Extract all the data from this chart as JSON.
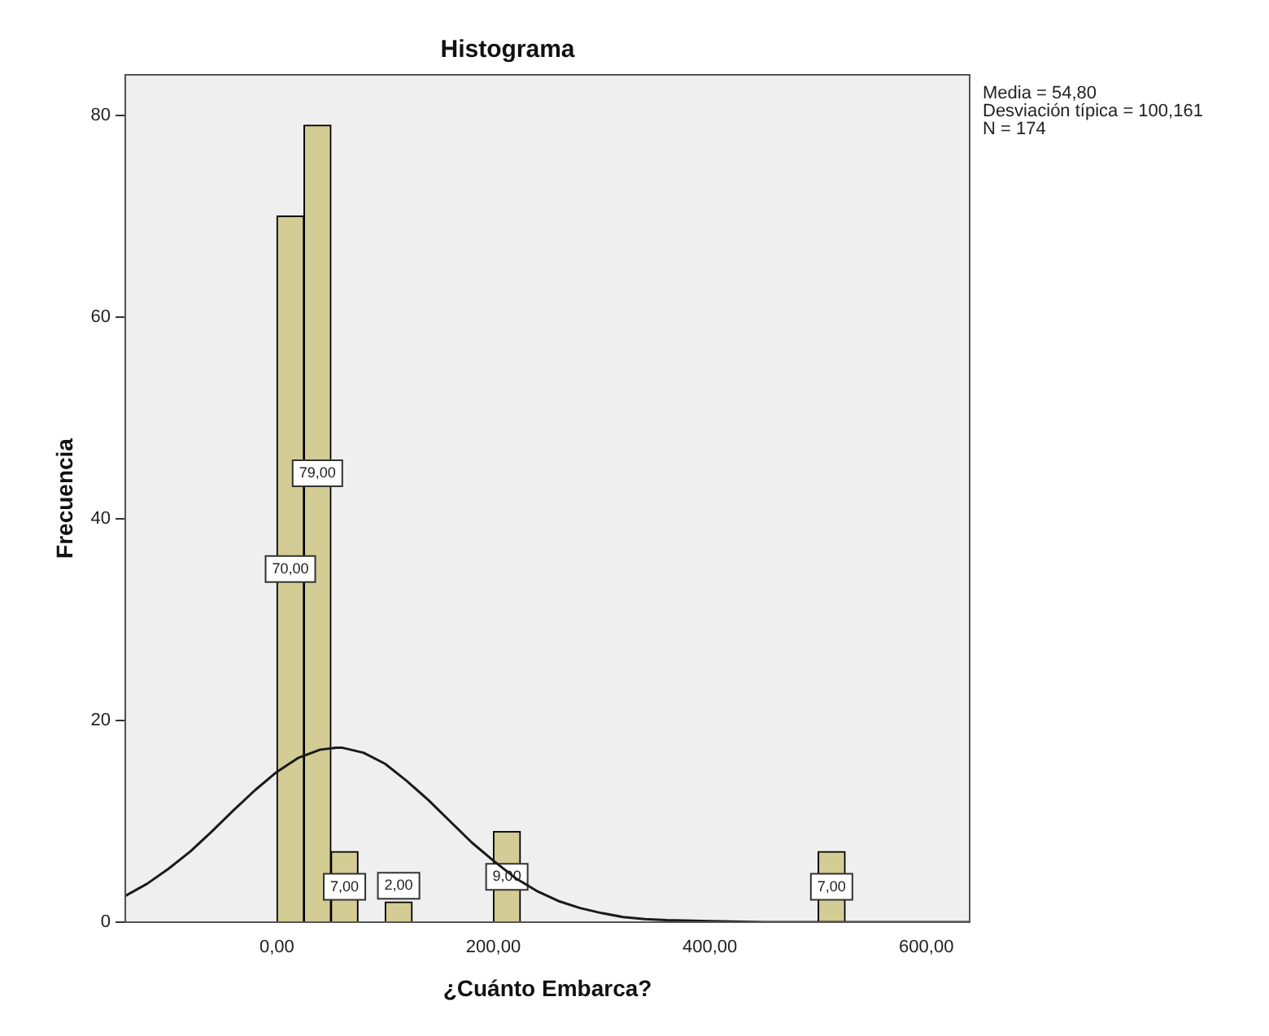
{
  "chart_data": {
    "type": "histogram",
    "title": "Histograma",
    "xlabel": "¿Cuánto Embarca?",
    "ylabel": "Frecuencia",
    "annotations": [
      "Media = 54,80",
      "Desviación típica = 100,161",
      "N = 174"
    ],
    "bins": [
      0,
      25,
      50,
      75,
      100,
      125,
      150,
      175,
      200,
      225,
      250,
      275,
      300,
      325,
      350,
      375,
      400,
      425,
      450,
      475,
      500,
      525
    ],
    "values": [
      70,
      79,
      7,
      0,
      2,
      0,
      0,
      0,
      9,
      0,
      0,
      0,
      0,
      0,
      0,
      0,
      0,
      0,
      0,
      0,
      7
    ],
    "value_labels": [
      "70,00",
      "79,00",
      "7,00",
      null,
      "2,00",
      null,
      null,
      null,
      "9,00",
      null,
      null,
      null,
      null,
      null,
      null,
      null,
      null,
      null,
      null,
      null,
      "7,00"
    ],
    "color": "#d3cc95",
    "series": [
      {
        "type": "line",
        "color": "#1a1a1a",
        "marker": "none",
        "line_style": "solid",
        "x": [
          -140,
          -120,
          -100,
          -80,
          -60,
          -40,
          -20,
          0,
          20,
          40,
          54.8,
          60,
          80,
          100,
          120,
          140,
          160,
          180,
          200,
          220,
          240,
          260,
          280,
          300,
          320,
          340,
          360,
          400,
          450,
          500,
          550,
          600,
          640
        ],
        "values": [
          2.6,
          3.8,
          5.3,
          7.0,
          9.0,
          11.1,
          13.1,
          14.9,
          16.3,
          17.1,
          17.3,
          17.3,
          16.8,
          15.7,
          14.0,
          12.1,
          10.0,
          7.9,
          6.1,
          4.4,
          3.1,
          2.1,
          1.4,
          0.9,
          0.5,
          0.3,
          0.2,
          0.1,
          0,
          0,
          0,
          0,
          0
        ]
      }
    ],
    "xlim": [
      -140,
      640
    ],
    "xticks": [
      {
        "value": 0,
        "label": "0,00"
      },
      {
        "value": 200,
        "label": "200,00"
      },
      {
        "value": 400,
        "label": "400,00"
      },
      {
        "value": 600,
        "label": "600,00"
      }
    ],
    "ylim": [
      0,
      84
    ],
    "yticks": [
      0,
      20,
      40,
      60,
      80
    ],
    "grid": false,
    "legend": false
  }
}
